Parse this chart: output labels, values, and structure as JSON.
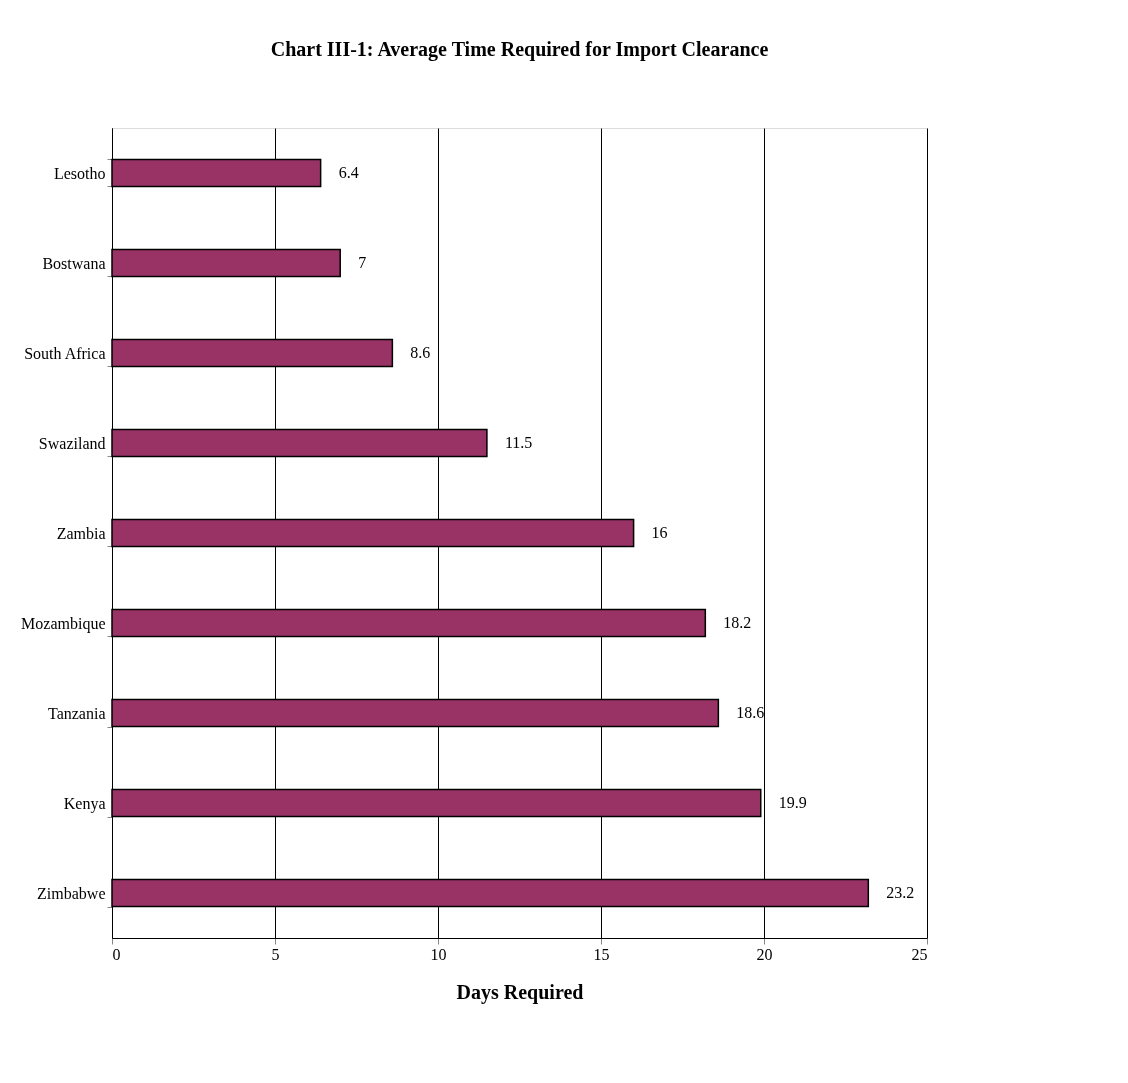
{
  "chart_data": {
    "type": "bar",
    "orientation": "horizontal",
    "title": "Chart III-1:   Average Time Required for Import Clearance",
    "xlabel": "Days Required",
    "categories": [
      "Lesotho",
      "Bostwana",
      "South Africa",
      "Swaziland",
      "Zambia",
      "Mozambique",
      "Tanzania",
      "Kenya",
      "Zimbabwe"
    ],
    "values": [
      6.4,
      7,
      8.6,
      11.5,
      16,
      18.2,
      18.6,
      19.9,
      23.2
    ],
    "color": "#993366",
    "xlim": [
      0,
      25
    ],
    "xticks": [
      0,
      5,
      10,
      15,
      20,
      25
    ],
    "grid": "x",
    "data_labels": true
  }
}
